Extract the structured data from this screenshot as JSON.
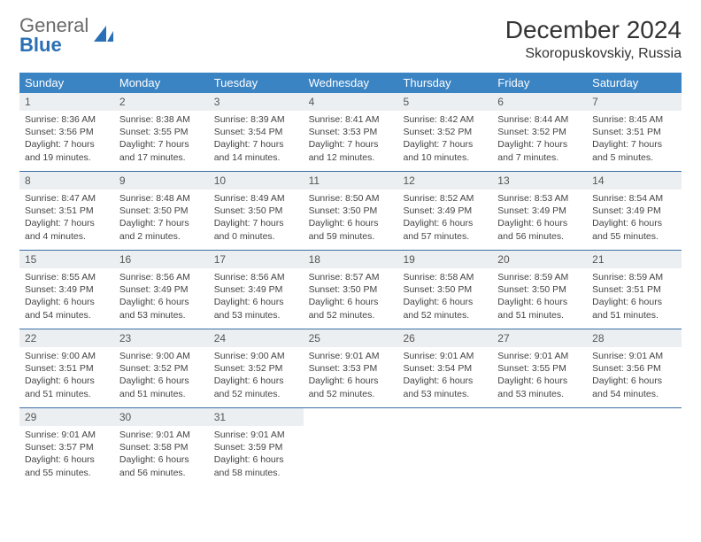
{
  "brand": {
    "part1": "General",
    "part2": "Blue"
  },
  "title": "December 2024",
  "location": "Skoropuskovskiy, Russia",
  "colors": {
    "header_bg": "#3b84c4",
    "header_text": "#ffffff",
    "daynum_bg": "#eceff1",
    "rule": "#3b6fa5",
    "brand_gray": "#6a6a6a",
    "brand_blue": "#2a6fb5"
  },
  "weekdays": [
    "Sunday",
    "Monday",
    "Tuesday",
    "Wednesday",
    "Thursday",
    "Friday",
    "Saturday"
  ],
  "days": [
    {
      "n": "1",
      "sunrise": "8:36 AM",
      "sunset": "3:56 PM",
      "daylight": "7 hours and 19 minutes."
    },
    {
      "n": "2",
      "sunrise": "8:38 AM",
      "sunset": "3:55 PM",
      "daylight": "7 hours and 17 minutes."
    },
    {
      "n": "3",
      "sunrise": "8:39 AM",
      "sunset": "3:54 PM",
      "daylight": "7 hours and 14 minutes."
    },
    {
      "n": "4",
      "sunrise": "8:41 AM",
      "sunset": "3:53 PM",
      "daylight": "7 hours and 12 minutes."
    },
    {
      "n": "5",
      "sunrise": "8:42 AM",
      "sunset": "3:52 PM",
      "daylight": "7 hours and 10 minutes."
    },
    {
      "n": "6",
      "sunrise": "8:44 AM",
      "sunset": "3:52 PM",
      "daylight": "7 hours and 7 minutes."
    },
    {
      "n": "7",
      "sunrise": "8:45 AM",
      "sunset": "3:51 PM",
      "daylight": "7 hours and 5 minutes."
    },
    {
      "n": "8",
      "sunrise": "8:47 AM",
      "sunset": "3:51 PM",
      "daylight": "7 hours and 4 minutes."
    },
    {
      "n": "9",
      "sunrise": "8:48 AM",
      "sunset": "3:50 PM",
      "daylight": "7 hours and 2 minutes."
    },
    {
      "n": "10",
      "sunrise": "8:49 AM",
      "sunset": "3:50 PM",
      "daylight": "7 hours and 0 minutes."
    },
    {
      "n": "11",
      "sunrise": "8:50 AM",
      "sunset": "3:50 PM",
      "daylight": "6 hours and 59 minutes."
    },
    {
      "n": "12",
      "sunrise": "8:52 AM",
      "sunset": "3:49 PM",
      "daylight": "6 hours and 57 minutes."
    },
    {
      "n": "13",
      "sunrise": "8:53 AM",
      "sunset": "3:49 PM",
      "daylight": "6 hours and 56 minutes."
    },
    {
      "n": "14",
      "sunrise": "8:54 AM",
      "sunset": "3:49 PM",
      "daylight": "6 hours and 55 minutes."
    },
    {
      "n": "15",
      "sunrise": "8:55 AM",
      "sunset": "3:49 PM",
      "daylight": "6 hours and 54 minutes."
    },
    {
      "n": "16",
      "sunrise": "8:56 AM",
      "sunset": "3:49 PM",
      "daylight": "6 hours and 53 minutes."
    },
    {
      "n": "17",
      "sunrise": "8:56 AM",
      "sunset": "3:49 PM",
      "daylight": "6 hours and 53 minutes."
    },
    {
      "n": "18",
      "sunrise": "8:57 AM",
      "sunset": "3:50 PM",
      "daylight": "6 hours and 52 minutes."
    },
    {
      "n": "19",
      "sunrise": "8:58 AM",
      "sunset": "3:50 PM",
      "daylight": "6 hours and 52 minutes."
    },
    {
      "n": "20",
      "sunrise": "8:59 AM",
      "sunset": "3:50 PM",
      "daylight": "6 hours and 51 minutes."
    },
    {
      "n": "21",
      "sunrise": "8:59 AM",
      "sunset": "3:51 PM",
      "daylight": "6 hours and 51 minutes."
    },
    {
      "n": "22",
      "sunrise": "9:00 AM",
      "sunset": "3:51 PM",
      "daylight": "6 hours and 51 minutes."
    },
    {
      "n": "23",
      "sunrise": "9:00 AM",
      "sunset": "3:52 PM",
      "daylight": "6 hours and 51 minutes."
    },
    {
      "n": "24",
      "sunrise": "9:00 AM",
      "sunset": "3:52 PM",
      "daylight": "6 hours and 52 minutes."
    },
    {
      "n": "25",
      "sunrise": "9:01 AM",
      "sunset": "3:53 PM",
      "daylight": "6 hours and 52 minutes."
    },
    {
      "n": "26",
      "sunrise": "9:01 AM",
      "sunset": "3:54 PM",
      "daylight": "6 hours and 53 minutes."
    },
    {
      "n": "27",
      "sunrise": "9:01 AM",
      "sunset": "3:55 PM",
      "daylight": "6 hours and 53 minutes."
    },
    {
      "n": "28",
      "sunrise": "9:01 AM",
      "sunset": "3:56 PM",
      "daylight": "6 hours and 54 minutes."
    },
    {
      "n": "29",
      "sunrise": "9:01 AM",
      "sunset": "3:57 PM",
      "daylight": "6 hours and 55 minutes."
    },
    {
      "n": "30",
      "sunrise": "9:01 AM",
      "sunset": "3:58 PM",
      "daylight": "6 hours and 56 minutes."
    },
    {
      "n": "31",
      "sunrise": "9:01 AM",
      "sunset": "3:59 PM",
      "daylight": "6 hours and 58 minutes."
    }
  ],
  "labels": {
    "sunrise": "Sunrise: ",
    "sunset": "Sunset: ",
    "daylight": "Daylight: "
  }
}
